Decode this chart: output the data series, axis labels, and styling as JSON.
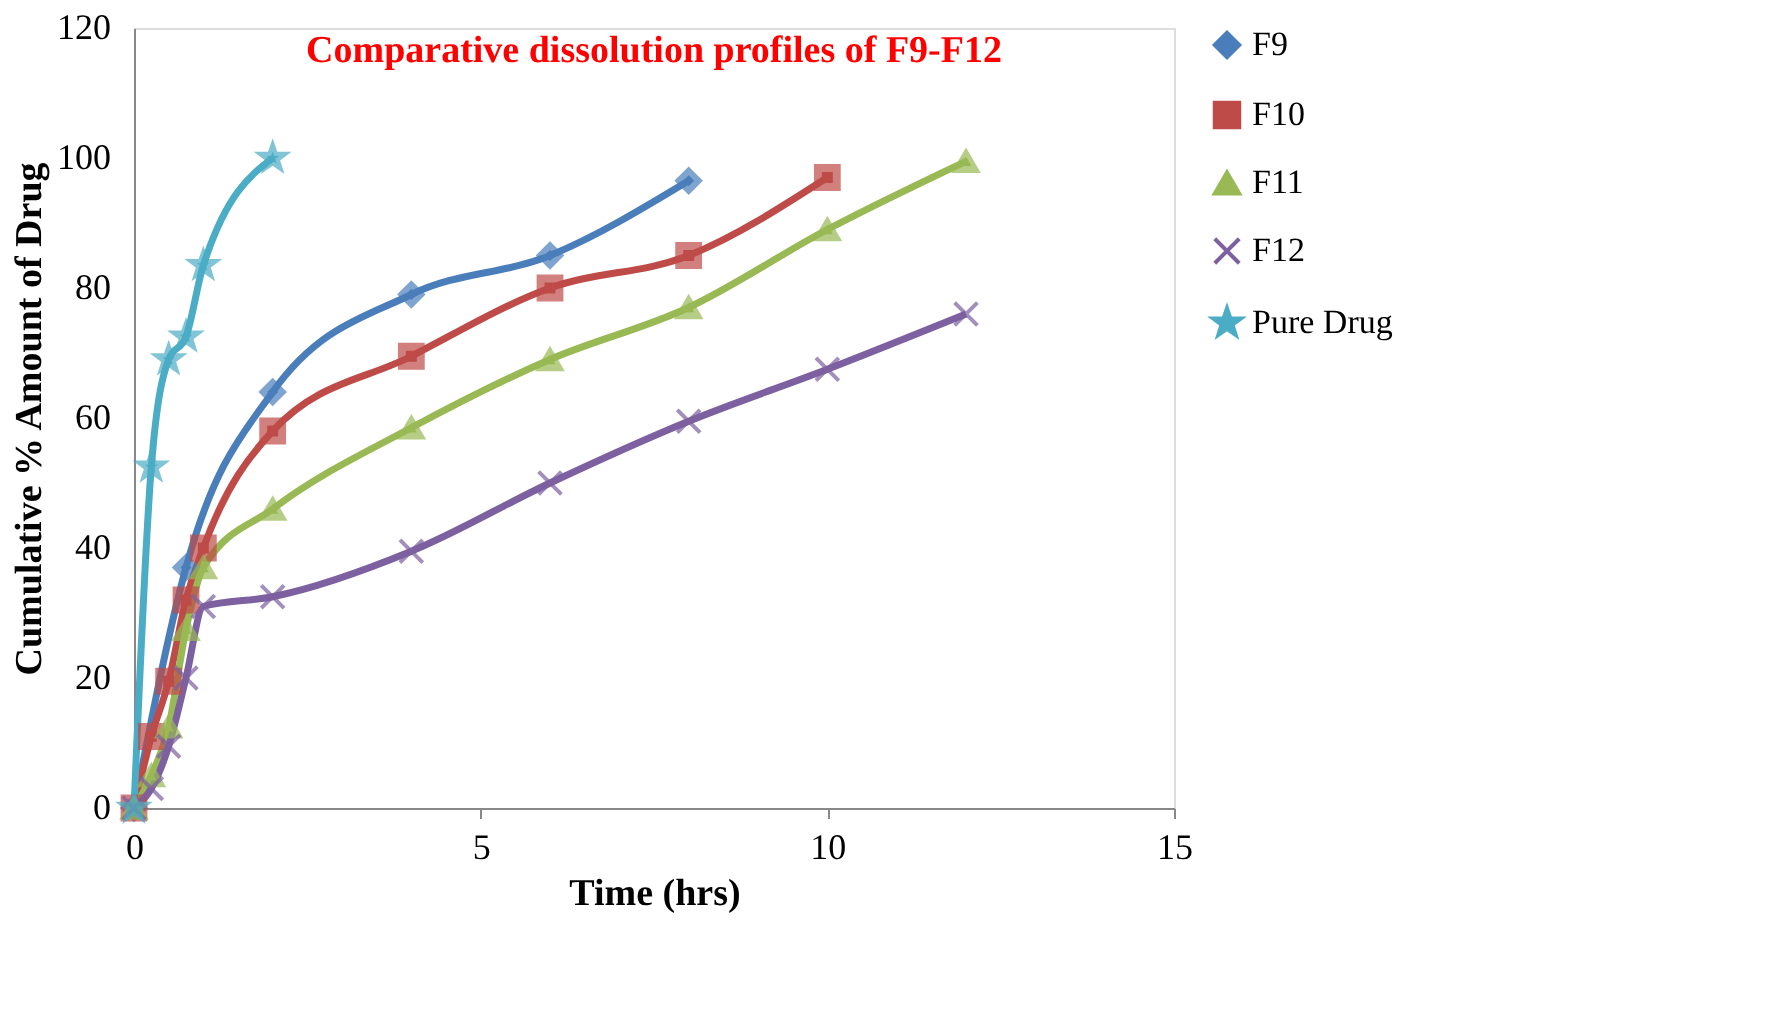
{
  "chart_data": {
    "type": "line",
    "title": "Comparative dissolution profiles of F9-F12",
    "xlabel": "Time (hrs)",
    "ylabel": "Cumulative % Amount of Drug",
    "xlim": [
      0,
      15
    ],
    "xticks": [
      0,
      5,
      10,
      15
    ],
    "ylim": [
      0,
      120
    ],
    "yticks": [
      0,
      20,
      40,
      60,
      80,
      100,
      120
    ],
    "grid": false,
    "legend": "right",
    "line_style": "solid",
    "series": [
      {
        "name": "F9",
        "color": "#4a7ebb",
        "marker": "diamond",
        "x": [
          0,
          0.75,
          2,
          4,
          6,
          8
        ],
        "values": [
          0,
          37,
          64,
          79,
          85,
          96.5
        ]
      },
      {
        "name": "F10",
        "color": "#be4b48",
        "marker": "square",
        "x": [
          0,
          0.25,
          0.5,
          0.75,
          1,
          2,
          4,
          6,
          8,
          10
        ],
        "values": [
          0,
          11,
          19.5,
          32,
          40,
          58,
          69.5,
          80,
          85,
          97
        ]
      },
      {
        "name": "F11",
        "color": "#98b954",
        "marker": "triangle",
        "x": [
          0,
          0.25,
          0.5,
          0.75,
          1,
          2,
          4,
          6,
          8,
          10,
          12
        ],
        "values": [
          0,
          5,
          12.5,
          27.5,
          37,
          46,
          58.5,
          69,
          77,
          89,
          99.5
        ]
      },
      {
        "name": "F12",
        "color": "#7d60a0",
        "marker": "cross",
        "x": [
          0,
          0.25,
          0.5,
          0.75,
          1,
          2,
          4,
          6,
          8,
          10,
          12
        ],
        "values": [
          0,
          3,
          9.5,
          20,
          31,
          32.5,
          39.5,
          50,
          59.5,
          67.5,
          76
        ]
      },
      {
        "name": "Pure Drug",
        "color": "#4bacc6",
        "marker": "star",
        "x": [
          0,
          0.25,
          0.5,
          0.75,
          1,
          2
        ],
        "values": [
          0,
          52.5,
          69,
          72.5,
          83.5,
          100
        ]
      }
    ]
  }
}
